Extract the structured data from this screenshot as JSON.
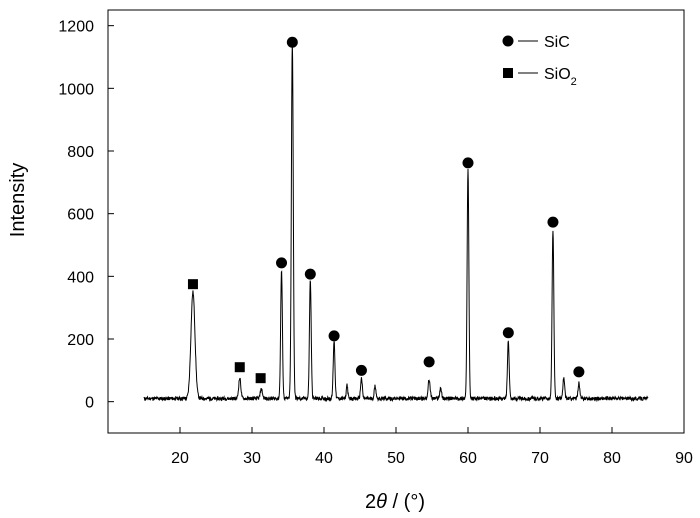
{
  "chart_data": {
    "type": "line",
    "title": "",
    "xlabel": {
      "prefix": "2",
      "var": "θ",
      "unit": " / (°)"
    },
    "ylabel": "Intensity",
    "xlim": [
      10,
      90
    ],
    "ylim": [
      -100,
      1250
    ],
    "xticks": [
      20,
      30,
      40,
      50,
      60,
      70,
      80,
      90
    ],
    "yticks": [
      0,
      200,
      400,
      600,
      800,
      1000,
      1200
    ],
    "grid": false,
    "legend_position": "top-right",
    "legend": [
      {
        "marker": "circle",
        "label": "SiC",
        "base": "SiC",
        "sub": ""
      },
      {
        "marker": "square",
        "label": "SiO2",
        "base": "SiO",
        "sub": "2"
      }
    ],
    "background_level": 10,
    "peaks": [
      {
        "x": 21.8,
        "y": 340,
        "w": 0.28
      },
      {
        "x": 28.3,
        "y": 65,
        "w": 0.15
      },
      {
        "x": 31.3,
        "y": 30,
        "w": 0.15
      },
      {
        "x": 34.1,
        "y": 410,
        "w": 0.12
      },
      {
        "x": 35.6,
        "y": 1140,
        "w": 0.13
      },
      {
        "x": 38.1,
        "y": 380,
        "w": 0.12
      },
      {
        "x": 41.4,
        "y": 185,
        "w": 0.12
      },
      {
        "x": 43.2,
        "y": 45,
        "w": 0.1
      },
      {
        "x": 45.2,
        "y": 65,
        "w": 0.12
      },
      {
        "x": 47.1,
        "y": 40,
        "w": 0.12
      },
      {
        "x": 54.6,
        "y": 60,
        "w": 0.14
      },
      {
        "x": 56.2,
        "y": 35,
        "w": 0.12
      },
      {
        "x": 60.0,
        "y": 735,
        "w": 0.12
      },
      {
        "x": 65.6,
        "y": 185,
        "w": 0.12
      },
      {
        "x": 71.8,
        "y": 540,
        "w": 0.12
      },
      {
        "x": 73.3,
        "y": 65,
        "w": 0.12
      },
      {
        "x": 75.4,
        "y": 50,
        "w": 0.12
      }
    ],
    "markers": [
      {
        "type": "square",
        "x": 21.8,
        "y": 375
      },
      {
        "type": "square",
        "x": 28.3,
        "y": 110
      },
      {
        "type": "square",
        "x": 31.2,
        "y": 75
      },
      {
        "type": "circle",
        "x": 34.1,
        "y": 443
      },
      {
        "type": "circle",
        "x": 35.6,
        "y": 1147
      },
      {
        "type": "circle",
        "x": 38.1,
        "y": 407
      },
      {
        "type": "circle",
        "x": 41.4,
        "y": 210
      },
      {
        "type": "circle",
        "x": 45.2,
        "y": 100
      },
      {
        "type": "circle",
        "x": 54.6,
        "y": 127
      },
      {
        "type": "circle",
        "x": 60.0,
        "y": 762
      },
      {
        "type": "circle",
        "x": 65.6,
        "y": 220
      },
      {
        "type": "circle",
        "x": 71.8,
        "y": 573
      },
      {
        "type": "circle",
        "x": 75.4,
        "y": 95
      }
    ],
    "series": [
      {
        "data_range": [
          15,
          85
        ],
        "color": "#000000"
      }
    ]
  }
}
